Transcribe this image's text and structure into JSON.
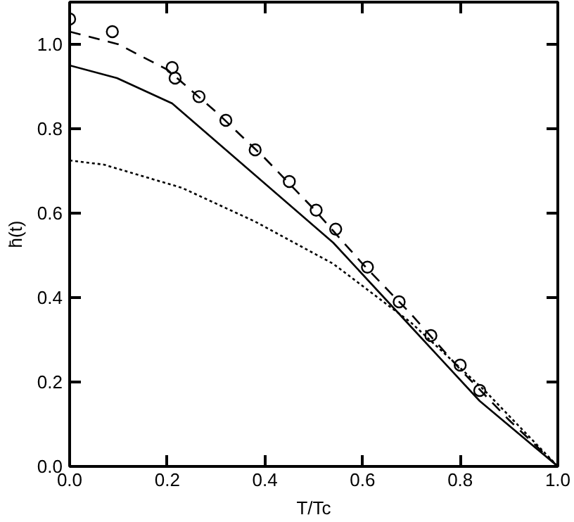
{
  "chart_data": {
    "type": "line",
    "xlabel": "T/Tc",
    "ylabel": "h̄(t)",
    "xlim": [
      0,
      1.0
    ],
    "ylim": [
      0,
      1.1
    ],
    "xticks": [
      {
        "value": 0,
        "label": "0.0"
      },
      0.2,
      0.4,
      0.6,
      0.8,
      {
        "value": 1,
        "label": "1.0"
      }
    ],
    "yticks": [
      {
        "value": 0,
        "label": "0.0"
      },
      0.2,
      0.4,
      0.6,
      0.8,
      {
        "value": 1,
        "label": "1.0"
      }
    ],
    "grid": false,
    "series": [
      {
        "type": "scatter",
        "marker": "circle",
        "color": "#000000",
        "x": [
          0,
          0.0875,
          0.21,
          0.216,
          0.265,
          0.32,
          0.38,
          0.45,
          0.505,
          0.545,
          0.61,
          0.675,
          0.74,
          0.8,
          0.84
        ],
        "values": [
          1.06,
          1.03,
          0.945,
          0.92,
          0.876,
          0.82,
          0.75,
          0.675,
          0.607,
          0.562,
          0.472,
          0.39,
          0.31,
          0.24,
          0.18
        ]
      },
      {
        "line_style": "solid",
        "color": "#000000",
        "x": [
          0,
          0.097,
          0.21,
          0.38,
          0.54,
          0.7,
          0.84,
          1.0
        ],
        "values": [
          0.95,
          0.92,
          0.86,
          0.69,
          0.53,
          0.33,
          0.155,
          0
        ]
      },
      {
        "line_style": "dashed",
        "color": "#000000",
        "x": [
          0,
          0.1,
          0.2,
          0.3,
          0.4,
          0.5,
          0.6,
          0.7,
          0.8,
          0.9,
          1.0
        ],
        "values": [
          1.03,
          1.0,
          0.94,
          0.84,
          0.73,
          0.61,
          0.48,
          0.36,
          0.23,
          0.11,
          0
        ]
      },
      {
        "line_style": "dotted",
        "color": "#000000",
        "x": [
          0,
          0.07,
          0.23,
          0.38,
          0.54,
          0.7,
          0.85,
          1.0
        ],
        "values": [
          0.725,
          0.715,
          0.66,
          0.58,
          0.48,
          0.34,
          0.18,
          0
        ]
      }
    ]
  }
}
